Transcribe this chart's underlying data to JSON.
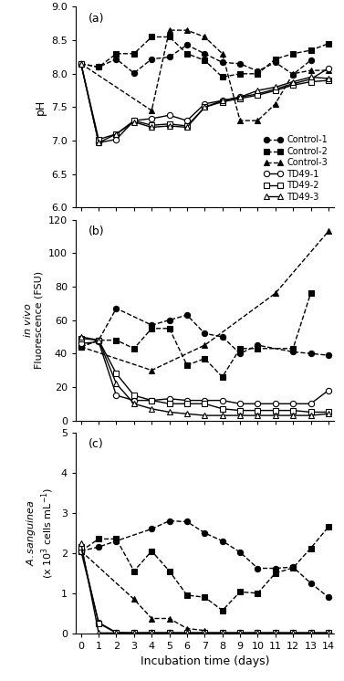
{
  "days": [
    0,
    1,
    2,
    3,
    4,
    5,
    6,
    7,
    8,
    9,
    10,
    11,
    12,
    13,
    14
  ],
  "pH": {
    "Control1": [
      8.15,
      8.1,
      8.22,
      8.01,
      8.22,
      8.25,
      8.43,
      8.3,
      8.17,
      8.15,
      8.04,
      8.17,
      7.99,
      8.2,
      null
    ],
    "Control2": [
      8.15,
      8.1,
      8.3,
      8.3,
      8.55,
      8.55,
      8.3,
      8.2,
      7.95,
      8.0,
      8.0,
      8.22,
      8.3,
      8.35,
      8.45
    ],
    "Control3": [
      8.15,
      null,
      null,
      null,
      7.45,
      8.65,
      8.65,
      8.55,
      8.3,
      7.3,
      7.3,
      7.55,
      8.0,
      8.05,
      8.05
    ],
    "TD49_1": [
      8.15,
      6.97,
      7.02,
      7.3,
      7.33,
      7.38,
      7.3,
      7.55,
      7.6,
      7.65,
      7.7,
      7.77,
      7.85,
      7.92,
      8.08
    ],
    "TD49_2": [
      8.15,
      7.02,
      7.1,
      7.3,
      7.23,
      7.25,
      7.22,
      7.5,
      7.58,
      7.63,
      7.68,
      7.75,
      7.83,
      7.88,
      7.9
    ],
    "TD49_3": [
      8.15,
      6.97,
      7.1,
      7.28,
      7.2,
      7.22,
      7.2,
      7.5,
      7.6,
      7.65,
      7.75,
      7.8,
      7.88,
      7.95,
      7.93
    ]
  },
  "fluor": {
    "Control1": [
      44,
      48,
      67,
      null,
      57,
      60,
      63,
      52,
      50,
      40,
      45,
      null,
      41,
      40,
      39
    ],
    "Control2": [
      44,
      48,
      48,
      43,
      55,
      55,
      33,
      37,
      26,
      43,
      43,
      null,
      43,
      76,
      null
    ],
    "Control3": [
      44,
      null,
      null,
      null,
      30,
      null,
      null,
      45,
      null,
      null,
      null,
      76,
      null,
      null,
      113
    ],
    "TD49_1": [
      46,
      47,
      15,
      12,
      12,
      13,
      12,
      12,
      12,
      10,
      10,
      10,
      10,
      10,
      18
    ],
    "TD49_2": [
      49,
      48,
      28,
      15,
      12,
      10,
      10,
      10,
      7,
      6,
      6,
      6,
      6,
      5,
      5
    ],
    "TD49_3": [
      50,
      48,
      22,
      10,
      7,
      5,
      4,
      3,
      3,
      3,
      3,
      3,
      3,
      3,
      4
    ]
  },
  "abund": {
    "Control1": [
      2.05,
      2.15,
      2.3,
      null,
      2.6,
      2.8,
      2.78,
      2.5,
      2.3,
      2.02,
      1.62,
      1.62,
      1.65,
      1.25,
      0.9
    ],
    "Control2": [
      2.05,
      2.35,
      2.35,
      1.55,
      2.05,
      1.55,
      0.95,
      0.9,
      0.57,
      1.03,
      1.0,
      1.5,
      1.63,
      2.12,
      2.65
    ],
    "Control3": [
      2.05,
      null,
      null,
      0.85,
      0.37,
      0.37,
      0.12,
      0.07,
      null,
      null,
      null,
      null,
      null,
      null,
      null
    ],
    "TD49_1": [
      2.05,
      0.27,
      0.02,
      0.01,
      0.01,
      0.01,
      0.01,
      0.01,
      0.01,
      0.01,
      0.01,
      0.01,
      0.01,
      0.01,
      0.01
    ],
    "TD49_2": [
      2.15,
      0.25,
      0.01,
      0.01,
      0.01,
      0.01,
      0.01,
      0.01,
      0.01,
      0.01,
      0.01,
      0.01,
      0.01,
      0.01,
      0.01
    ],
    "TD49_3": [
      2.25,
      0.01,
      0.01,
      0.01,
      0.01,
      0.01,
      0.01,
      0.01,
      0.01,
      0.01,
      0.01,
      0.01,
      0.01,
      0.01,
      0.01
    ]
  },
  "pH_ylim": [
    6.0,
    9.0
  ],
  "pH_yticks": [
    6.0,
    6.5,
    7.0,
    7.5,
    8.0,
    8.5,
    9.0
  ],
  "fluor_ylim": [
    0,
    120
  ],
  "fluor_yticks": [
    0,
    20,
    40,
    60,
    80,
    100,
    120
  ],
  "abund_ylim": [
    0,
    5.0
  ],
  "abund_yticks": [
    0,
    1.0,
    2.0,
    3.0,
    4.0,
    5.0
  ],
  "xlim": [
    -0.3,
    14.3
  ],
  "xticks": [
    0,
    1,
    2,
    3,
    4,
    5,
    6,
    7,
    8,
    9,
    10,
    11,
    12,
    13,
    14
  ]
}
